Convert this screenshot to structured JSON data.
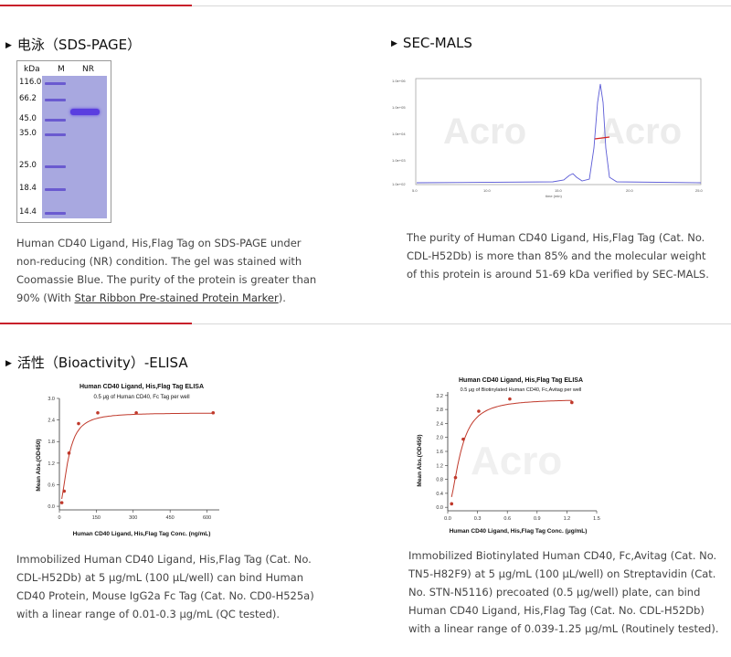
{
  "sds": {
    "title": "电泳（SDS-PAGE）",
    "gel": {
      "kda_label": "kDa",
      "lane_m": "M",
      "lane_nr": "NR",
      "markers": [
        "116.0",
        "66.2",
        "45.0",
        "35.0",
        "25.0",
        "18.4",
        "14.4"
      ]
    },
    "desc_text": "Human CD40 Ligand, His,Flag Tag on SDS-PAGE under non-reducing (NR) condition. The gel was stained with Coomassie Blue. The purity of the protein is greater than 90% (With ",
    "desc_link": "Star Ribbon Pre-stained Protein Marker",
    "desc_end": ")."
  },
  "mals": {
    "title": "SEC-MALS",
    "desc": "The purity of Human CD40 Ligand, His,Flag Tag (Cat. No. CDL-H52Db) is more than 85% and the molecular weight of this protein is around 51-69 kDa verified by SEC-MALS.",
    "watermark": "Acro",
    "y_ticks": [
      "1.0e+06",
      "1.0e+05",
      "1.0e+04",
      "1.0e+03",
      "1.0e+02"
    ],
    "x_ticks": [
      "5.0",
      "10.0",
      "15.0",
      "20.0",
      "25.0"
    ],
    "xlabel": "time (min)"
  },
  "bio": {
    "title": "活性（Bioactivity）-ELISA",
    "desc1": "Immobilized Human CD40 Ligand, His,Flag Tag (Cat. No. CDL-H52Db) at 5 μg/mL (100 μL/well) can bind Human CD40 Protein, Mouse IgG2a Fc Tag (Cat. No. CD0-H525a) with a linear range of 0.01-0.3 μg/mL (QC tested).",
    "desc2": "Immobilized Biotinylated Human CD40, Fc,Avitag (Cat. No. TN5-H82F9) at 5 μg/mL (100 μL/well) on Streptavidin (Cat. No. STN-N5116) precoated (0.5 μg/well) plate, can bind Human CD40 Ligand, His,Flag Tag (Cat. No. CDL-H52Db) with a linear range of 0.039-1.25 μg/mL (Routinely tested).",
    "watermark": "Acro"
  },
  "chart_data": [
    {
      "type": "scatter",
      "title": "Human CD40 Ligand, His,Flag Tag ELISA",
      "subtitle": "0.5 μg of Human CD40, Fc Tag per well",
      "xlabel": "Human CD40 Ligand, His,Flag Tag Conc. (ng/mL)",
      "ylabel": "Mean Abs.(OD450)",
      "xlim": [
        0,
        650
      ],
      "ylim": [
        -0.1,
        3.0
      ],
      "x_ticks": [
        0,
        150,
        300,
        450,
        600
      ],
      "y_ticks": [
        0.0,
        0.6,
        1.2,
        1.8,
        2.4,
        3.0
      ],
      "x": [
        9.8,
        19.5,
        39,
        78,
        156,
        312.5,
        625
      ],
      "y": [
        0.1,
        0.42,
        1.48,
        2.3,
        2.6,
        2.6,
        2.6
      ],
      "fit": "4-parameter logistic"
    },
    {
      "type": "scatter",
      "title": "Human CD40 Ligand, His,Flag Tag ELISA",
      "subtitle": "0.5 μg of Biotinylated Human CD40, Fc,Avitag per well",
      "xlabel": "Human CD40 Ligand, His,Flag Tag Conc. (μg/mL)",
      "ylabel": "Mean Abs.(OD450)",
      "xlim": [
        0,
        1.5
      ],
      "ylim": [
        -0.1,
        3.3
      ],
      "x_ticks": [
        0.0,
        0.3,
        0.6,
        0.9,
        1.2,
        1.5
      ],
      "y_ticks": [
        0.0,
        0.4,
        0.8,
        1.2,
        1.6,
        2.0,
        2.4,
        2.8,
        3.2
      ],
      "x": [
        0.039,
        0.078,
        0.156,
        0.3125,
        0.625,
        1.25
      ],
      "y": [
        0.1,
        0.85,
        1.95,
        2.75,
        3.1,
        3.0
      ],
      "fit": "4-parameter logistic"
    }
  ],
  "colors": {
    "accent": "#c8202a",
    "curve": "#c0392b",
    "sec_line": "#5b5bd6"
  }
}
